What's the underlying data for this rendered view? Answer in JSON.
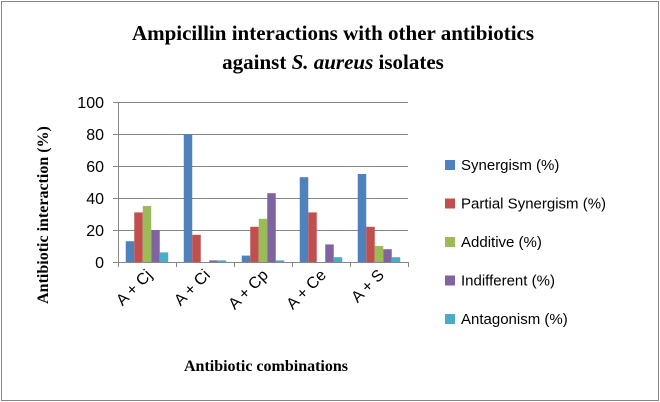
{
  "chart_data": {
    "type": "bar",
    "title_line1": "Ampicillin interactions with other antibiotics",
    "title_line2_pre": "against ",
    "title_line2_italic": "S. aureus",
    "title_line2_post": " isolates",
    "xlabel": "Antibiotic combinations",
    "ylabel": "Antibiotic interaction (%)",
    "ylim": [
      0,
      100
    ],
    "yticks": [
      "0",
      "20",
      "40",
      "60",
      "80",
      "100"
    ],
    "ytick_values": [
      0,
      20,
      40,
      60,
      80,
      100
    ],
    "grid": true,
    "legend_position": "right",
    "categories": [
      "A + Cj",
      "A + Ci",
      "A + Cp",
      "A + Ce",
      "A + S"
    ],
    "series": [
      {
        "name": "Synergism (%)",
        "color": "#4F81BD",
        "values": [
          13,
          80,
          4,
          53,
          55
        ]
      },
      {
        "name": "Partial Synergism (%)",
        "color": "#C0504D",
        "values": [
          31,
          17,
          22,
          31,
          22
        ]
      },
      {
        "name": "Additive (%)",
        "color": "#9BBB59",
        "values": [
          35,
          0,
          27,
          0,
          10
        ]
      },
      {
        "name": "Indifferent (%)",
        "color": "#8064A2",
        "values": [
          20,
          1,
          43,
          11,
          8
        ]
      },
      {
        "name": "Antagonism (%)",
        "color": "#4BACC6",
        "values": [
          6,
          1,
          1,
          3,
          3
        ]
      }
    ]
  }
}
